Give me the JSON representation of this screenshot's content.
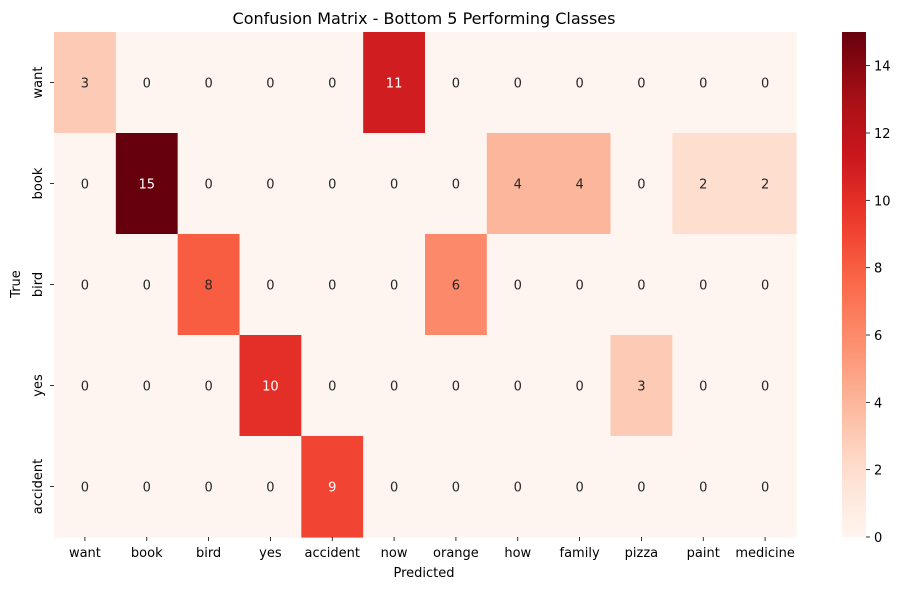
{
  "chart_data": {
    "type": "heatmap",
    "title": "Confusion Matrix - Bottom 5 Performing Classes",
    "xlabel": "Predicted",
    "ylabel": "True",
    "x_categories": [
      "want",
      "book",
      "bird",
      "yes",
      "accident",
      "now",
      "orange",
      "how",
      "family",
      "pizza",
      "paint",
      "medicine"
    ],
    "y_categories": [
      "want",
      "book",
      "bird",
      "yes",
      "accident"
    ],
    "values": [
      [
        3,
        0,
        0,
        0,
        0,
        11,
        0,
        0,
        0,
        0,
        0,
        0
      ],
      [
        0,
        15,
        0,
        0,
        0,
        0,
        0,
        4,
        4,
        0,
        2,
        2
      ],
      [
        0,
        0,
        8,
        0,
        0,
        0,
        6,
        0,
        0,
        0,
        0,
        0
      ],
      [
        0,
        0,
        0,
        10,
        0,
        0,
        0,
        0,
        0,
        3,
        0,
        0
      ],
      [
        0,
        0,
        0,
        0,
        9,
        0,
        0,
        0,
        0,
        0,
        0,
        0
      ]
    ],
    "colorbar": {
      "range": [
        0,
        15
      ],
      "ticks": [
        "0",
        "2",
        "4",
        "6",
        "8",
        "10",
        "12",
        "14"
      ],
      "colormap": "Reds"
    },
    "annotations": true,
    "grid": false
  }
}
